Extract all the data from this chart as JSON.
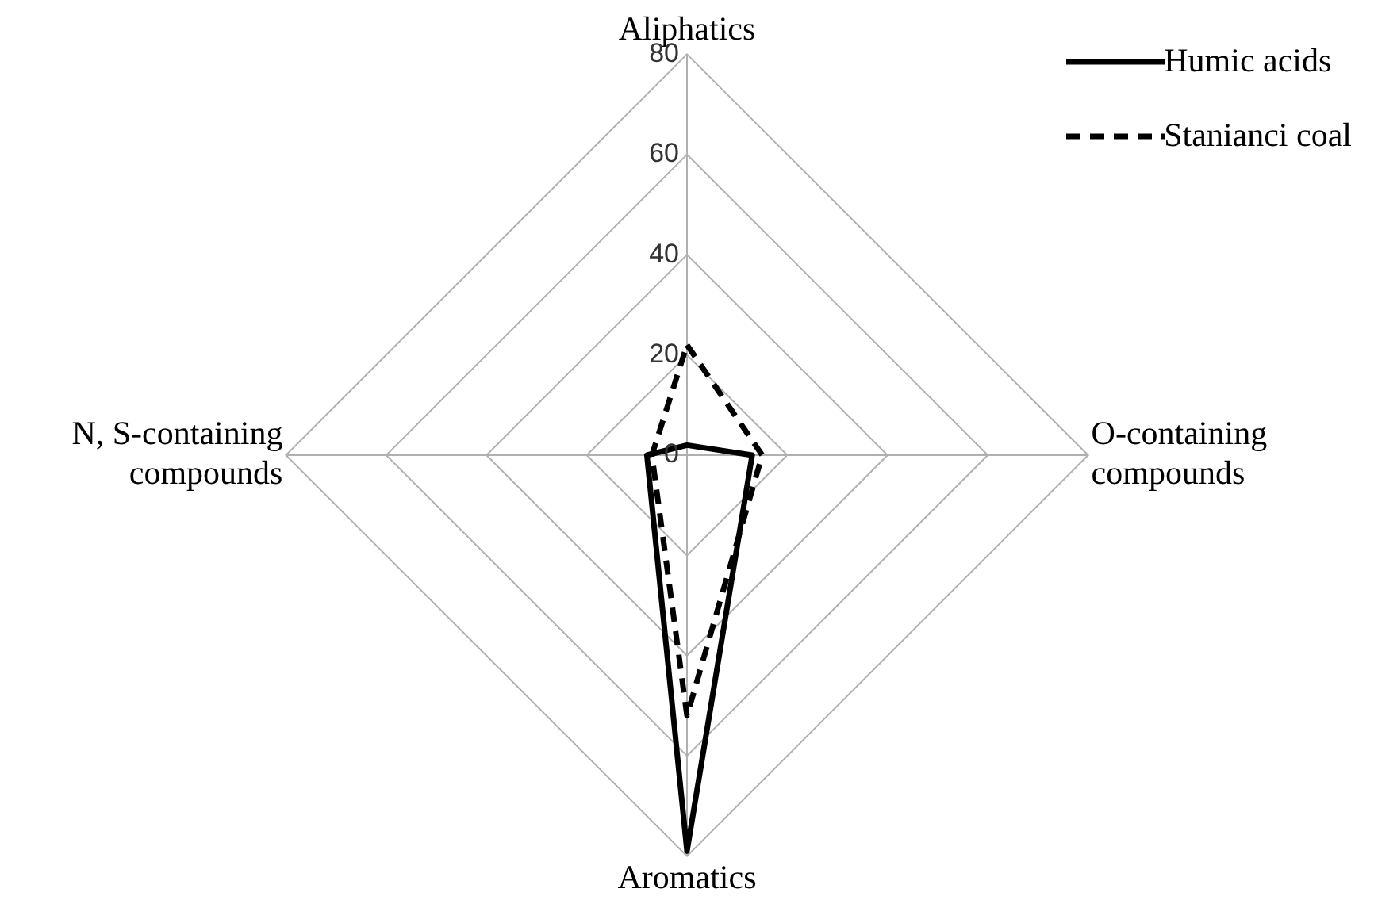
{
  "chart_data": {
    "type": "radar",
    "categories": [
      "Aliphatics",
      "O-containing compounds",
      "Aromatics",
      "N, S-containing compounds"
    ],
    "series": [
      {
        "name": "Humic acids",
        "color": "#000000",
        "line_style": "solid",
        "values": [
          2,
          13,
          79,
          8
        ]
      },
      {
        "name": "Stanianci coal",
        "color": "#000000",
        "line_style": "dashed",
        "values": [
          22,
          15,
          52,
          7
        ]
      }
    ],
    "ylim": [
      0,
      80
    ],
    "yticks": [
      0,
      20,
      40,
      60,
      80
    ],
    "grid": true,
    "legend": "top right",
    "marker": "none"
  }
}
